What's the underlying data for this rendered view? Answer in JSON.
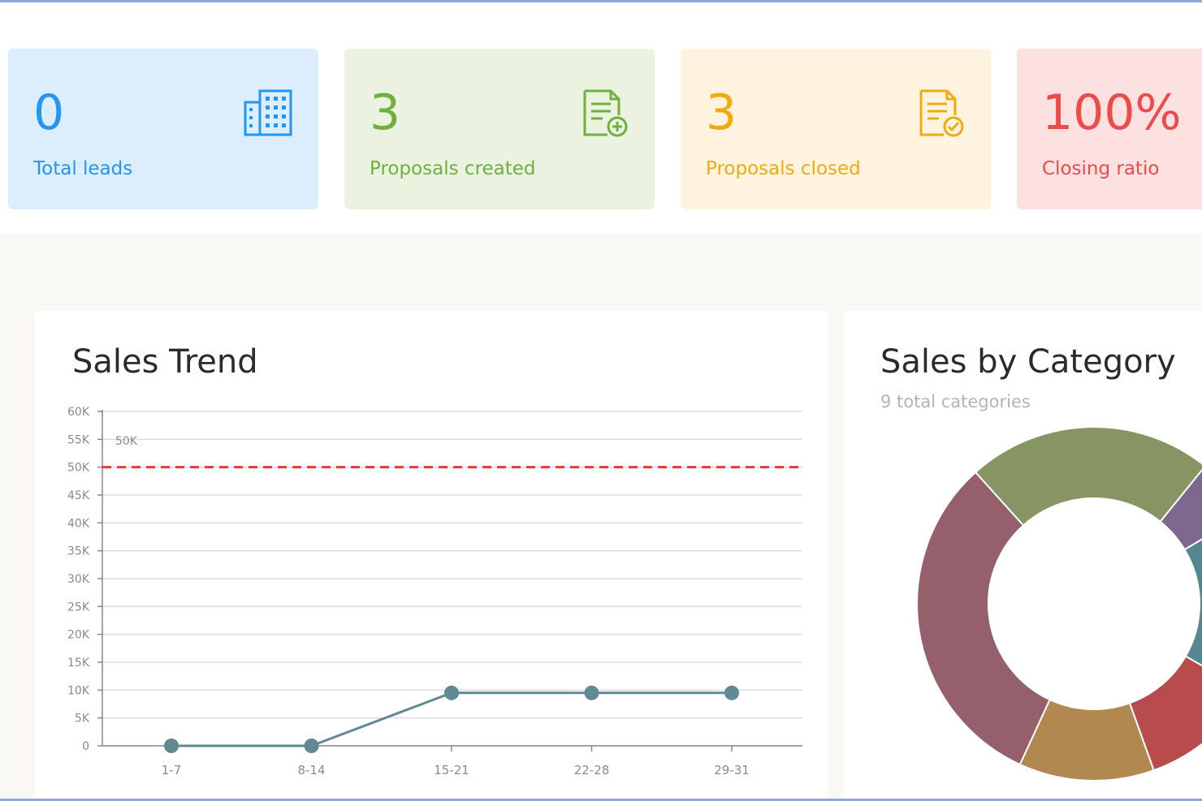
{
  "kpis": [
    {
      "value": "0",
      "label": "Total leads",
      "icon": "building-icon",
      "color": "#2196f3",
      "bg": "#dcedfd"
    },
    {
      "value": "3",
      "label": "Proposals created",
      "icon": "document-add-icon",
      "color": "#6fb03f",
      "bg": "#ebf3e0"
    },
    {
      "value": "3",
      "label": "Proposals closed",
      "icon": "document-check-icon",
      "color": "#f2aa12",
      "bg": "#fef3de"
    },
    {
      "value": "100%",
      "label": "Closing ratio",
      "color": "#ef4a4a",
      "bg": "#fde1e1"
    }
  ],
  "sales_trend": {
    "title": "Sales Trend"
  },
  "sales_by_category": {
    "title": "Sales by Category",
    "subtitle": "9 total categories"
  },
  "chart_data": [
    {
      "type": "line",
      "title": "Sales Trend",
      "categories": [
        "1-7",
        "8-14",
        "15-21",
        "22-28",
        "29-31"
      ],
      "series": [
        {
          "values": [
            0,
            0,
            9500,
            9500,
            9500
          ],
          "color": "#5f8a94"
        }
      ],
      "ylim": [
        0,
        60000
      ],
      "yticks": [
        0,
        5000,
        10000,
        15000,
        20000,
        25000,
        30000,
        35000,
        40000,
        45000,
        50000,
        55000,
        60000
      ],
      "ytick_labels": [
        "0",
        "5K",
        "10K",
        "15K",
        "20K",
        "25K",
        "30K",
        "35K",
        "40K",
        "45K",
        "50K",
        "55K",
        "60K"
      ],
      "target_line": {
        "value": 50000,
        "label": "50K",
        "color": "#e53935"
      },
      "grid": true
    },
    {
      "type": "pie",
      "title": "Sales by Category",
      "subtitle": "9 total categories",
      "donut": true,
      "slices": [
        {
          "value": 20,
          "color": "#879464"
        },
        {
          "value": 5,
          "color": "#7e6890"
        },
        {
          "value": 15,
          "color": "#56868f"
        },
        {
          "value": 10,
          "color": "#b84c4c"
        },
        {
          "value": 11,
          "color": "#b08850"
        },
        {
          "value": 28,
          "color": "#955f6c"
        }
      ]
    }
  ]
}
